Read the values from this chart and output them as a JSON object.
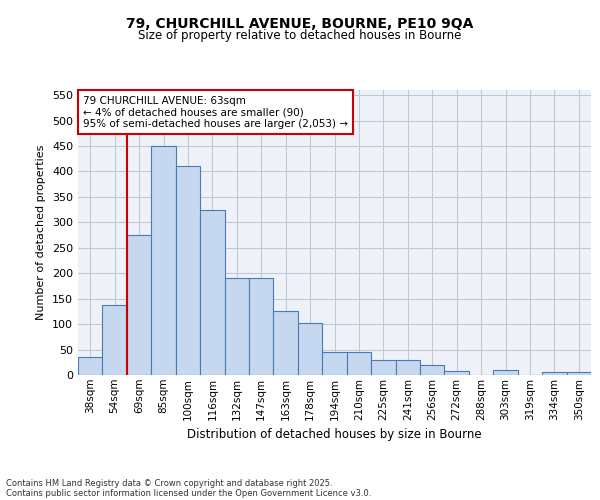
{
  "title1": "79, CHURCHILL AVENUE, BOURNE, PE10 9QA",
  "title2": "Size of property relative to detached houses in Bourne",
  "xlabel": "Distribution of detached houses by size in Bourne",
  "ylabel": "Number of detached properties",
  "categories": [
    "38sqm",
    "54sqm",
    "69sqm",
    "85sqm",
    "100sqm",
    "116sqm",
    "132sqm",
    "147sqm",
    "163sqm",
    "178sqm",
    "194sqm",
    "210sqm",
    "225sqm",
    "241sqm",
    "256sqm",
    "272sqm",
    "288sqm",
    "303sqm",
    "319sqm",
    "334sqm",
    "350sqm"
  ],
  "values": [
    35,
    137,
    275,
    450,
    410,
    325,
    190,
    190,
    125,
    103,
    46,
    46,
    30,
    30,
    20,
    7,
    0,
    10,
    0,
    5,
    5
  ],
  "bar_color": "#c5d8f0",
  "bar_edge_color": "#4a7ab5",
  "redline_x": 1.5,
  "annotation_text": "79 CHURCHILL AVENUE: 63sqm\n← 4% of detached houses are smaller (90)\n95% of semi-detached houses are larger (2,053) →",
  "annotation_box_color": "#ffffff",
  "annotation_box_edge": "#cc0000",
  "redline_color": "#cc0000",
  "grid_color": "#c0c8d8",
  "background_color": "#eef2f8",
  "footer1": "Contains HM Land Registry data © Crown copyright and database right 2025.",
  "footer2": "Contains public sector information licensed under the Open Government Licence v3.0.",
  "ylim": [
    0,
    560
  ],
  "yticks": [
    0,
    50,
    100,
    150,
    200,
    250,
    300,
    350,
    400,
    450,
    500,
    550
  ]
}
